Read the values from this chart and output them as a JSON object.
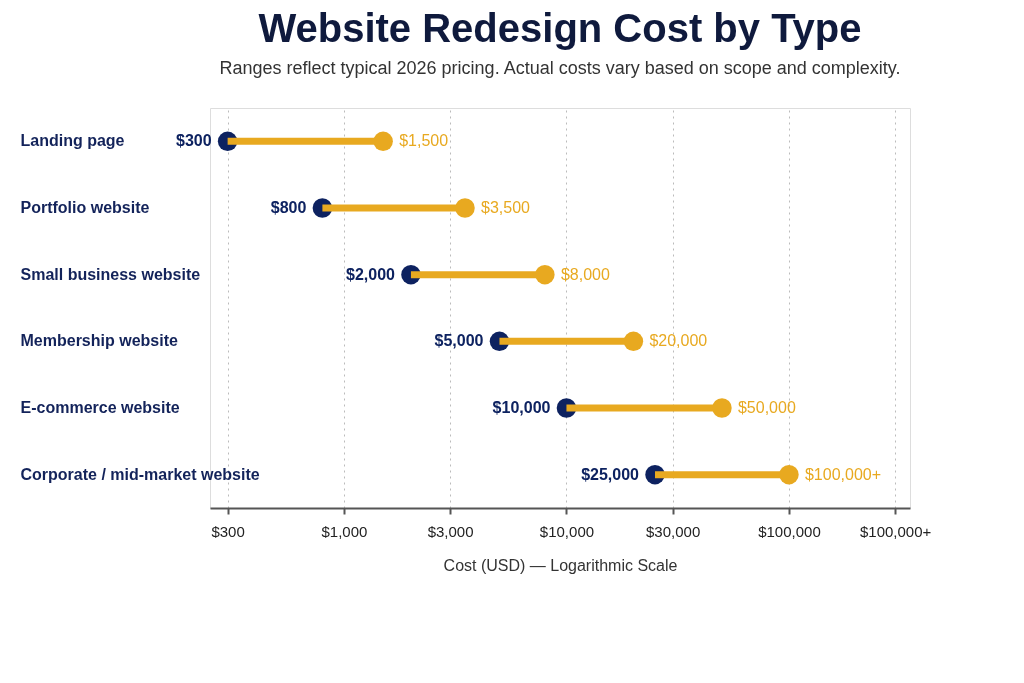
{
  "chart_data": {
    "type": "scatter",
    "orientation": "horizontal",
    "title": "Website Redesign Cost by Type",
    "subtitle": "Ranges reflect typical 2026 pricing. Actual costs vary based on scope and complexity.",
    "xlabel": "Cost (USD) — Logarithmic Scale",
    "categories": [
      "Landing page",
      "Portfolio website",
      "Small business website",
      "Membership website",
      "E-commerce website",
      "Corporate / mid-market website"
    ],
    "series": [
      {
        "color": "#0d2260",
        "values": [
          300,
          800,
          2000,
          5000,
          10000,
          25000
        ],
        "value_labels": [
          "$300",
          "$800",
          "$2,000",
          "$5,000",
          "$10,000",
          "$25,000"
        ]
      },
      {
        "color": "#e8a920",
        "values": [
          1500,
          3500,
          8000,
          20000,
          50000,
          100000
        ],
        "value_labels": [
          "$1,500",
          "$3,500",
          "$8,000",
          "$20,000",
          "$50,000",
          "$100,000+"
        ]
      }
    ],
    "log": "x",
    "xlim": [
      250,
      350000
    ],
    "xticks": [
      {
        "value": 300,
        "label": "$300"
      },
      {
        "value": 1000,
        "label": "$1,000"
      },
      {
        "value": 3000,
        "label": "$3,000"
      },
      {
        "value": 10000,
        "label": "$10,000"
      },
      {
        "value": 30000,
        "label": "$30,000"
      },
      {
        "value": 100000,
        "label": "$100,000"
      },
      {
        "value": 300000,
        "label": "$100,000+"
      }
    ],
    "grid": "x",
    "marker": "circle",
    "legend": false
  }
}
